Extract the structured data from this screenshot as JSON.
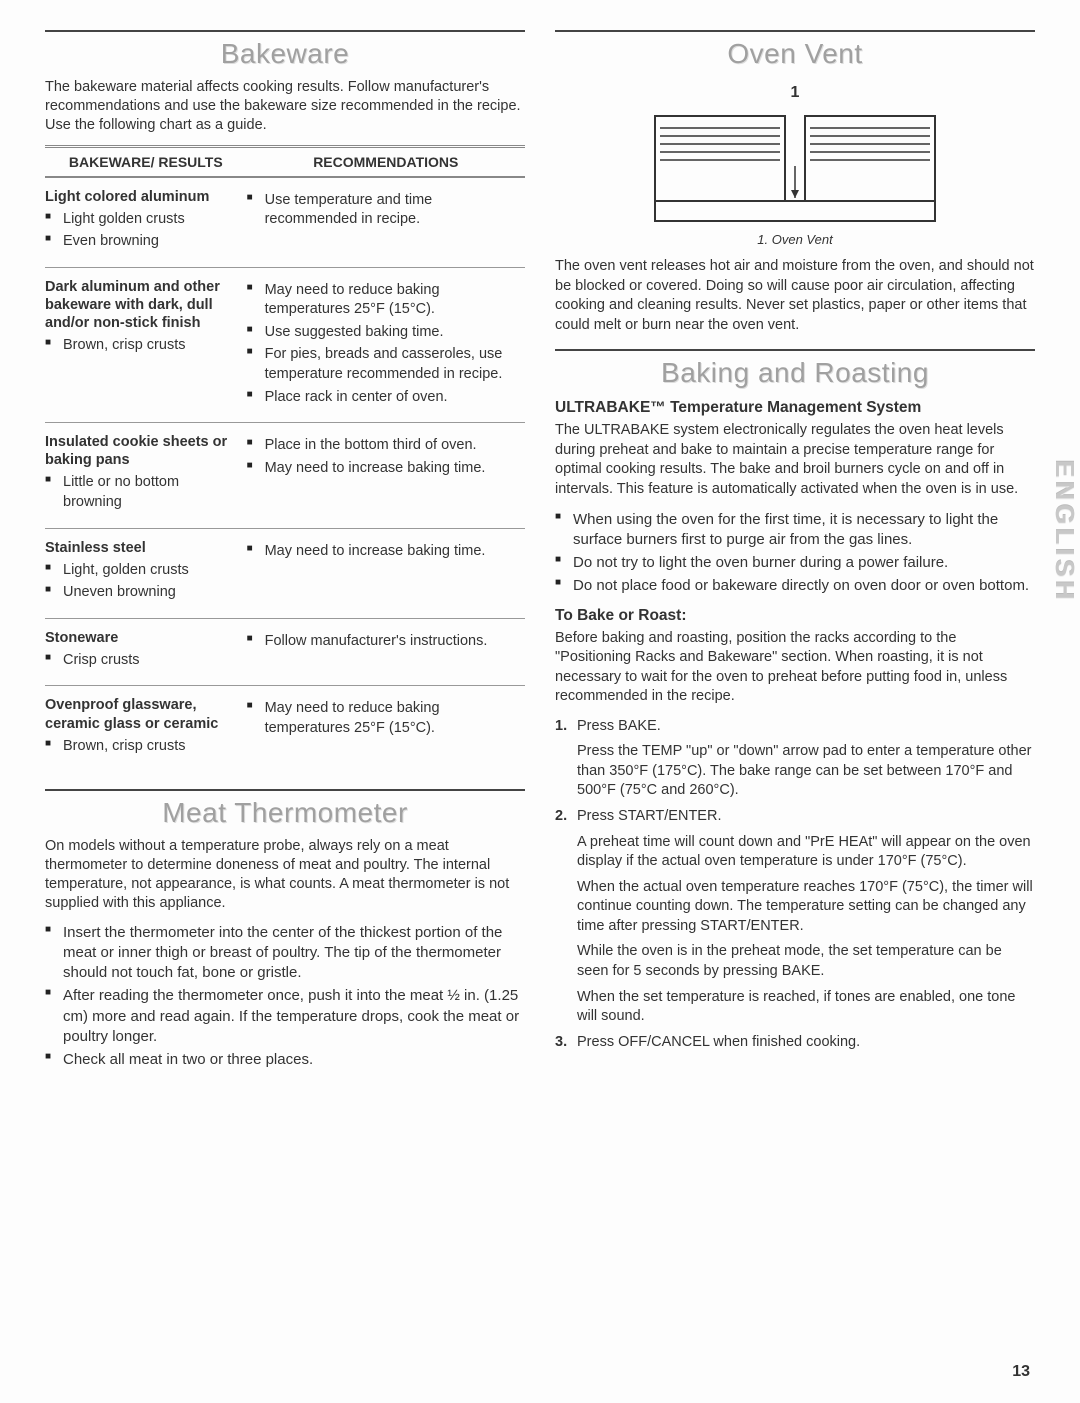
{
  "bakeware": {
    "title": "Bakeware",
    "intro": "The bakeware material affects cooking results. Follow manufacturer's recommendations and use the bakeware size recommended in the recipe. Use the following chart as a guide.",
    "head_left": "BAKEWARE/ RESULTS",
    "head_right": "RECOMMENDATIONS",
    "rows": [
      {
        "name": "Light colored aluminum",
        "results": [
          "Light golden crusts",
          "Even browning"
        ],
        "recs": [
          "Use temperature and time recommended in recipe."
        ]
      },
      {
        "name": "Dark aluminum and other bakeware with dark, dull and/or non-stick finish",
        "results": [
          "Brown, crisp crusts"
        ],
        "recs": [
          "May need to reduce baking temperatures 25°F (15°C).",
          "Use suggested baking time.",
          "For pies, breads and casseroles, use temperature recommended in recipe.",
          "Place rack in center of oven."
        ]
      },
      {
        "name": "Insulated cookie sheets or baking pans",
        "results": [
          "Little or no bottom browning"
        ],
        "recs": [
          "Place in the bottom third of oven.",
          "May need to increase baking time."
        ]
      },
      {
        "name": "Stainless steel",
        "results": [
          "Light, golden crusts",
          "Uneven browning"
        ],
        "recs": [
          "May need to increase baking time."
        ]
      },
      {
        "name": "Stoneware",
        "results": [
          "Crisp crusts"
        ],
        "recs": [
          "Follow manufacturer's instructions."
        ]
      },
      {
        "name": "Ovenproof glassware, ceramic glass or ceramic",
        "results": [
          "Brown, crisp crusts"
        ],
        "recs": [
          "May need to reduce baking temperatures 25°F (15°C)."
        ]
      }
    ]
  },
  "meat": {
    "title": "Meat Thermometer",
    "intro": "On models without a temperature probe, always rely on a meat thermometer to determine doneness of meat and poultry. The internal temperature, not appearance, is what counts. A meat thermometer is not supplied with this appliance.",
    "bullets": [
      "Insert the thermometer into the center of the thickest portion of the meat or inner thigh or breast of poultry. The tip of the thermometer should not touch fat, bone or gristle.",
      "After reading the thermometer once, push it into the meat ½ in. (1.25 cm) more and read again. If the temperature drops, cook the meat or poultry longer.",
      "Check all meat in two or three places."
    ]
  },
  "vent": {
    "title": "Oven Vent",
    "fig_num": "1",
    "caption": "1. Oven Vent",
    "text": "The oven vent releases hot air and moisture from the oven, and should not be blocked or covered. Doing so will cause poor air circulation, affecting cooking and cleaning results. Never set plastics, paper or other items that could melt or burn near the oven vent."
  },
  "baking": {
    "title": "Baking and Roasting",
    "sys_head": "ULTRABAKE™ Temperature Management System",
    "sys_text": "The ULTRABAKE system electronically regulates the oven heat levels during preheat and bake to maintain a precise temperature range for optimal cooking results. The bake and broil burners cycle on and off in intervals. This feature is automatically activated when the oven is in use.",
    "sys_bullets": [
      "When using the oven for the first time, it is necessary to light the surface burners first to purge air from the gas lines.",
      "Do not try to light the oven burner during a power failure.",
      "Do not place food or bakeware directly on oven door or oven bottom."
    ],
    "howto_head": "To Bake or Roast:",
    "howto_intro": "Before baking and roasting, position the racks according to the \"Positioning Racks and Bakeware\" section. When roasting, it is not necessary to wait for the oven to preheat before putting food in, unless recommended in the recipe.",
    "steps": [
      {
        "main": "Press BAKE.",
        "subs": [
          "Press the TEMP \"up\" or \"down\" arrow pad to enter a temperature other than 350°F (175°C). The bake range can be set between 170°F and 500°F (75°C and 260°C)."
        ]
      },
      {
        "main": "Press START/ENTER.",
        "subs": [
          "A preheat time will count down and \"PrE HEAt\" will appear on the oven display if the actual oven temperature is under 170°F (75°C).",
          "When the actual oven temperature reaches 170°F (75°C), the timer will continue counting down. The temperature setting can be changed any time after pressing START/ENTER.",
          "While the oven is in the preheat mode, the set temperature can be seen for 5 seconds by pressing BAKE.",
          "When the set temperature is reached, if tones are enabled, one tone will sound."
        ]
      },
      {
        "main": "Press OFF/CANCEL when finished cooking.",
        "subs": []
      }
    ]
  },
  "side_tab": "ENGLISH",
  "page_number": "13"
}
